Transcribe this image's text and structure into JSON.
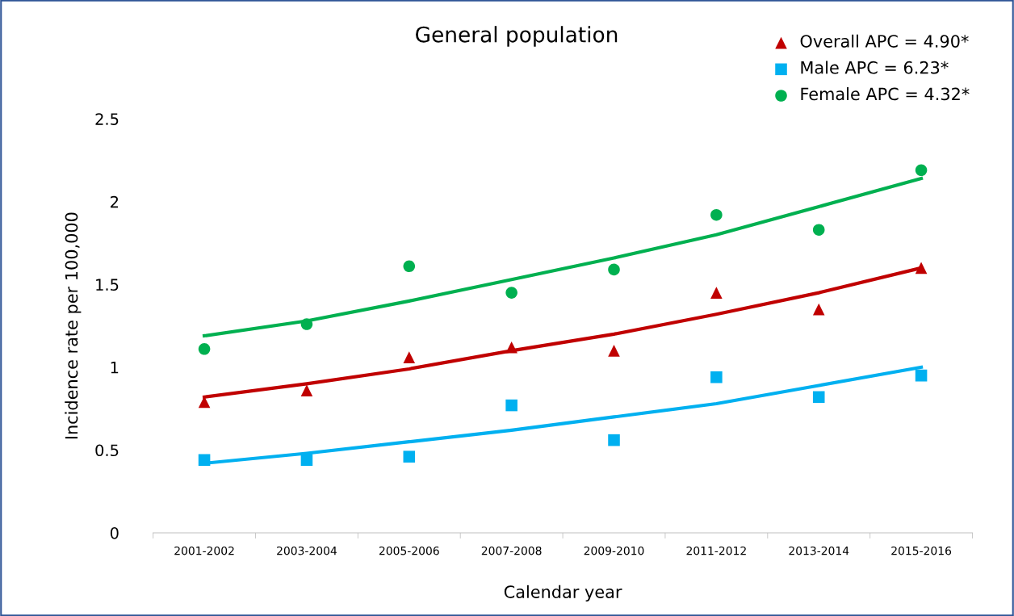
{
  "chart_data": {
    "type": "scatter",
    "title": "General population",
    "xlabel": "Calendar year",
    "ylabel": "Incidence rate per 100,000",
    "categories": [
      "2001-2002",
      "2003-2004",
      "2005-2006",
      "2007-2008",
      "2009-2010",
      "2011-2012",
      "2013-2014",
      "2015-2016"
    ],
    "ylim": [
      0,
      2.5
    ],
    "yticks": [
      0,
      0.5,
      1,
      1.5,
      2,
      2.5
    ],
    "grid": false,
    "legend": "top right",
    "series": [
      {
        "name": "Overall APC = 4.90*",
        "color": "#c00000",
        "marker": "triangle",
        "values": [
          0.79,
          0.86,
          1.06,
          1.12,
          1.1,
          1.45,
          1.35,
          1.6
        ]
      },
      {
        "name": "Male APC = 6.23*",
        "color": "#00b0f0",
        "marker": "square",
        "values": [
          0.44,
          0.44,
          0.46,
          0.77,
          0.56,
          0.94,
          0.82,
          0.95
        ]
      },
      {
        "name": "Female APC = 4.32*",
        "color": "#00b050",
        "marker": "circle",
        "values": [
          1.11,
          1.26,
          1.61,
          1.45,
          1.59,
          1.92,
          1.83,
          2.19
        ]
      },
      {
        "type": "line",
        "color": "#c00000",
        "line_style": "solid",
        "values": [
          0.82,
          0.9,
          0.99,
          1.1,
          1.2,
          1.32,
          1.45,
          1.6
        ]
      },
      {
        "type": "line",
        "color": "#00b0f0",
        "line_style": "solid",
        "values": [
          0.42,
          0.48,
          0.55,
          0.62,
          0.7,
          0.78,
          0.89,
          1.0
        ]
      },
      {
        "type": "line",
        "color": "#00b050",
        "line_style": "solid",
        "values": [
          1.19,
          1.28,
          1.4,
          1.53,
          1.66,
          1.8,
          1.97,
          2.14
        ]
      }
    ]
  }
}
